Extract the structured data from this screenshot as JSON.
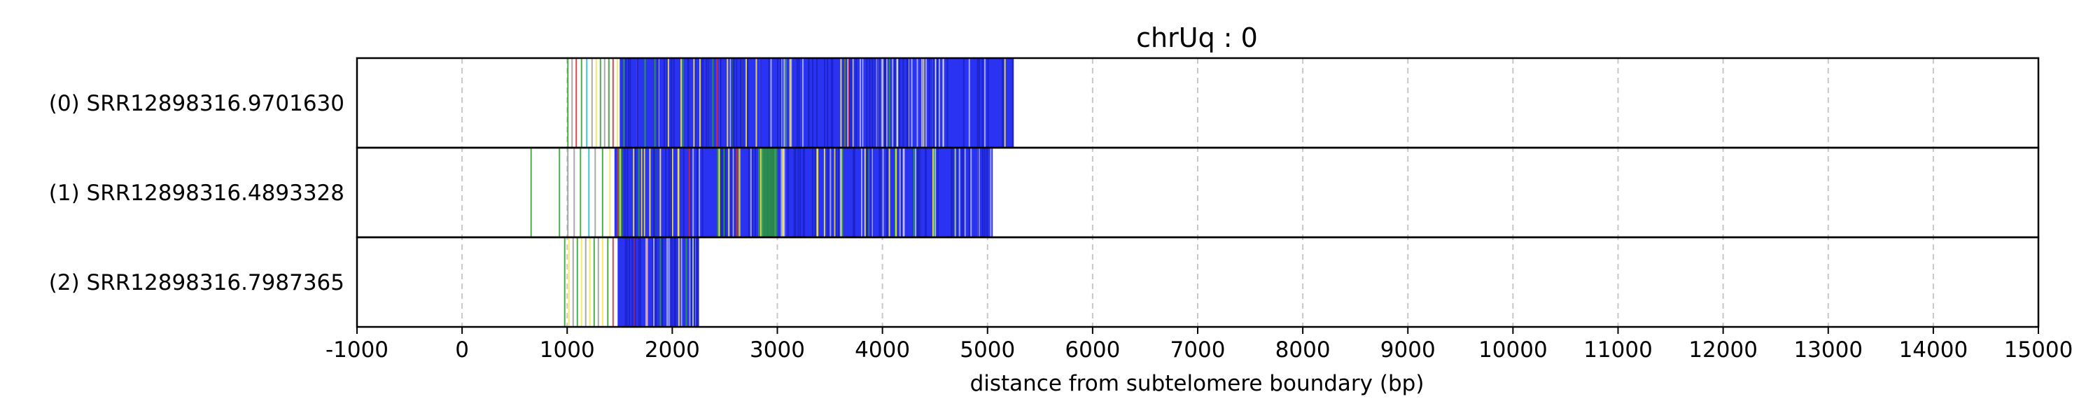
{
  "chart_data": {
    "type": "read-track",
    "title": "chrUq : 0",
    "xlabel": "distance from subtelomere boundary (bp)",
    "xlim": [
      -1000,
      15000
    ],
    "xticks": [
      -1000,
      0,
      1000,
      2000,
      3000,
      4000,
      5000,
      6000,
      7000,
      8000,
      9000,
      10000,
      11000,
      12000,
      13000,
      14000,
      15000
    ],
    "grid": true,
    "colors": {
      "dominant": "#2a33f2",
      "green": "#2ca02c",
      "yellow": "#f2e64d",
      "red": "#d62728",
      "cyan": "#17becf",
      "grey": "#9a9a9a"
    },
    "rows": [
      {
        "label": "(0) SRR12898316.9701630",
        "read_start": 1000,
        "dense_start": 1500,
        "read_end": 5250,
        "sparse_marks": [
          {
            "x": 1000,
            "color": "green"
          },
          {
            "x": 1040,
            "color": "grey"
          },
          {
            "x": 1080,
            "color": "red"
          },
          {
            "x": 1130,
            "color": "green"
          },
          {
            "x": 1180,
            "color": "cyan"
          },
          {
            "x": 1230,
            "color": "grey"
          },
          {
            "x": 1270,
            "color": "yellow"
          },
          {
            "x": 1310,
            "color": "green"
          },
          {
            "x": 1350,
            "color": "grey"
          },
          {
            "x": 1390,
            "color": "green"
          },
          {
            "x": 1430,
            "color": "red"
          },
          {
            "x": 1470,
            "color": "yellow"
          }
        ]
      },
      {
        "label": "(1) SRR12898316.4893328",
        "read_start": 650,
        "dense_start": 1450,
        "read_end": 5050,
        "sparse_marks": [
          {
            "x": 650,
            "color": "green"
          },
          {
            "x": 920,
            "color": "green"
          },
          {
            "x": 1000,
            "color": "grey"
          },
          {
            "x": 1060,
            "color": "grey"
          },
          {
            "x": 1120,
            "color": "green"
          },
          {
            "x": 1200,
            "color": "cyan"
          },
          {
            "x": 1260,
            "color": "grey"
          },
          {
            "x": 1330,
            "color": "green"
          },
          {
            "x": 1400,
            "color": "yellow"
          }
        ],
        "green_band": [
          2850,
          3000
        ]
      },
      {
        "label": "(2) SRR12898316.7987365",
        "read_start": 970,
        "dense_start": 1480,
        "read_end": 2250,
        "sparse_marks": [
          {
            "x": 970,
            "color": "green"
          },
          {
            "x": 1010,
            "color": "yellow"
          },
          {
            "x": 1050,
            "color": "grey"
          },
          {
            "x": 1090,
            "color": "green"
          },
          {
            "x": 1130,
            "color": "yellow"
          },
          {
            "x": 1170,
            "color": "grey"
          },
          {
            "x": 1210,
            "color": "yellow"
          },
          {
            "x": 1250,
            "color": "green"
          },
          {
            "x": 1290,
            "color": "grey"
          },
          {
            "x": 1330,
            "color": "yellow"
          },
          {
            "x": 1380,
            "color": "green"
          },
          {
            "x": 1430,
            "color": "red"
          }
        ]
      }
    ]
  }
}
